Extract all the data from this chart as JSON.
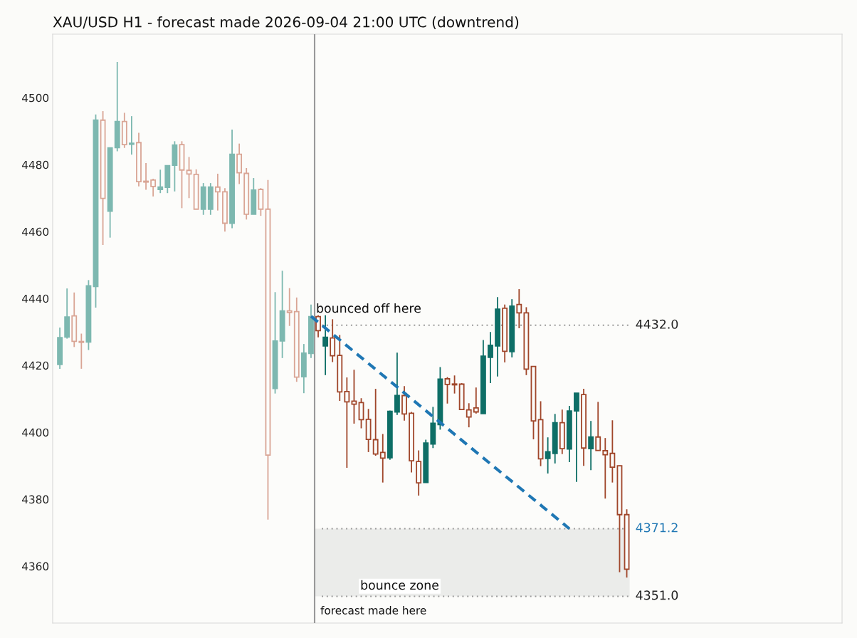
{
  "chart_data": {
    "type": "candlestick",
    "title": "XAU/USD H1 - forecast made 2026-09-04 21:00 UTC (downtrend)",
    "categories": [
      null,
      null,
      null,
      null,
      null,
      null,
      null,
      null,
      null,
      null,
      null,
      null,
      null,
      null,
      null,
      null,
      null,
      null,
      null,
      null,
      null,
      null,
      null,
      null,
      null,
      null,
      null,
      null,
      null,
      null,
      null,
      null,
      null,
      null,
      null,
      null,
      null,
      null,
      null,
      null,
      null,
      null,
      null,
      null,
      null,
      null,
      null,
      null,
      null,
      null,
      null,
      null,
      null,
      null,
      null,
      null,
      null,
      null,
      null,
      null,
      null,
      null,
      null,
      null,
      null,
      null,
      null,
      null,
      null,
      null,
      null,
      null,
      null,
      null,
      null,
      null,
      null,
      null,
      null,
      null
    ],
    "ohlc": [
      [
        4420.3,
        4431.3,
        4419.0,
        4428.3
      ],
      [
        4428.5,
        4443.0,
        4428.0,
        4434.5
      ],
      [
        4434.8,
        4441.8,
        4425.5,
        4427.2
      ],
      [
        4427.1,
        4429.5,
        4419.0,
        4426.9
      ],
      [
        4427.0,
        4445.5,
        4424.6,
        4443.8
      ],
      [
        4443.6,
        4495.0,
        4437.3,
        4493.3
      ],
      [
        4493.3,
        4496.0,
        4456.0,
        4469.9
      ],
      [
        4466.1,
        4485.0,
        4458.2,
        4485.0
      ],
      [
        4485.1,
        4510.7,
        4484.0,
        4492.9
      ],
      [
        4492.9,
        4495.5,
        4485.0,
        4486.0
      ],
      [
        4486.1,
        4494.5,
        4483.0,
        4486.4
      ],
      [
        4486.6,
        4489.5,
        4473.5,
        4474.9
      ],
      [
        4475.0,
        4480.5,
        4472.5,
        4474.8
      ],
      [
        4475.4,
        4475.8,
        4470.5,
        4473.5
      ],
      [
        4472.6,
        4478.5,
        4471.5,
        4473.3
      ],
      [
        4473.2,
        4479.7,
        4471.5,
        4479.7
      ],
      [
        4479.8,
        4487.0,
        4472.0,
        4485.9
      ],
      [
        4486.0,
        4487.0,
        4467.0,
        4478.4
      ],
      [
        4478.3,
        4482.3,
        4470.0,
        4477.2
      ],
      [
        4477.1,
        4478.6,
        4466.7,
        4466.7
      ],
      [
        4466.7,
        4474.5,
        4465.0,
        4473.3
      ],
      [
        4466.7,
        4474.5,
        4465.0,
        4473.3
      ],
      [
        4473.3,
        4477.3,
        4466.3,
        4471.9
      ],
      [
        4471.9,
        4473.0,
        4460.0,
        4462.5
      ],
      [
        4462.5,
        4490.5,
        4461.0,
        4483.1
      ],
      [
        4483.1,
        4486.3,
        4474.2,
        4477.6
      ],
      [
        4477.4,
        4479.0,
        4463.6,
        4465.2
      ],
      [
        4465.2,
        4476.0,
        4465.2,
        4472.4
      ],
      [
        4472.6,
        4473.0,
        4464.7,
        4466.7
      ],
      [
        4466.7,
        4475.4,
        4373.9,
        4393.2
      ],
      [
        4413.1,
        4441.9,
        4411.6,
        4427.3
      ],
      [
        4427.3,
        4448.3,
        4422.2,
        4436.3
      ],
      [
        4436.3,
        4443.1,
        4431.8,
        4435.8
      ],
      [
        4436.1,
        4440.3,
        4415.1,
        4416.5
      ],
      [
        4416.6,
        4426.4,
        4411.7,
        4423.7
      ],
      [
        4423.6,
        4438.2,
        4422.2,
        4434.6
      ],
      [
        4434.6,
        4435.0,
        4428.4,
        4430.4
      ],
      [
        4425.8,
        4435.0,
        4417.1,
        4428.4
      ],
      [
        4428.2,
        4433.8,
        4421.0,
        4422.9
      ],
      [
        4423.0,
        4429.1,
        4409.4,
        4412.1
      ],
      [
        4412.2,
        4416.4,
        4389.4,
        4409.1
      ],
      [
        4409.3,
        4418.7,
        4402.6,
        4408.4
      ],
      [
        4408.9,
        4410.2,
        4401.2,
        4403.8
      ],
      [
        4403.9,
        4407.0,
        4394.1,
        4397.9
      ],
      [
        4397.8,
        4413.0,
        4393.0,
        4393.5
      ],
      [
        4394.0,
        4399.5,
        4385.0,
        4392.3
      ],
      [
        4392.4,
        4406.5,
        4391.8,
        4406.3
      ],
      [
        4406.1,
        4423.8,
        4405.2,
        4411.0
      ],
      [
        4411.0,
        4413.8,
        4403.5,
        4405.5
      ],
      [
        4405.7,
        4406.1,
        4388.0,
        4391.5
      ],
      [
        4391.3,
        4394.6,
        4381.1,
        4384.9
      ],
      [
        4385.0,
        4397.8,
        4385.0,
        4396.8
      ],
      [
        4396.5,
        4407.6,
        4395.3,
        4402.7
      ],
      [
        4402.3,
        4419.5,
        4400.8,
        4415.9
      ],
      [
        4416.0,
        4416.5,
        4408.6,
        4414.3
      ],
      [
        4414.3,
        4417.0,
        4411.6,
        4414.2
      ],
      [
        4414.4,
        4414.7,
        4406.8,
        4406.8
      ],
      [
        4406.7,
        4408.7,
        4401.5,
        4404.6
      ],
      [
        4407.3,
        4413.4,
        4405.6,
        4406.1
      ],
      [
        4405.6,
        4427.6,
        4405.6,
        4422.8
      ],
      [
        4422.4,
        4430.0,
        4414.7,
        4426.0
      ],
      [
        4425.8,
        4440.4,
        4416.7,
        4436.8
      ],
      [
        4437.1,
        4438.2,
        4420.9,
        4424.2
      ],
      [
        4424.1,
        4439.8,
        4422.4,
        4437.7
      ],
      [
        4438.2,
        4442.8,
        4431.1,
        4435.7
      ],
      [
        4435.7,
        4437.4,
        4417.1,
        4418.9
      ],
      [
        4419.7,
        4419.7,
        4397.9,
        4403.4
      ],
      [
        4403.8,
        4409.3,
        4389.9,
        4392.1
      ],
      [
        4392.2,
        4398.5,
        4387.7,
        4394.2
      ],
      [
        4393.7,
        4405.5,
        4390.7,
        4402.9
      ],
      [
        4402.9,
        4406.8,
        4393.5,
        4395.1
      ],
      [
        4395.0,
        4407.9,
        4391.1,
        4406.4
      ],
      [
        4406.4,
        4411.7,
        4385.2,
        4411.7
      ],
      [
        4411.3,
        4413.0,
        4390.0,
        4395.3
      ],
      [
        4395.1,
        4403.4,
        4388.7,
        4398.6
      ],
      [
        4398.6,
        4409.1,
        4394.6,
        4394.6
      ],
      [
        4394.5,
        4398.3,
        4380.2,
        4393.3
      ],
      [
        4393.7,
        4403.6,
        4385.0,
        4389.6
      ],
      [
        4390.0,
        4390.1,
        4358.2,
        4375.4
      ],
      [
        4375.4,
        4377.0,
        4356.6,
        4359.1
      ]
    ],
    "colors": [
      "#7db8b0",
      "#7db8b0",
      "#d9a595",
      "#d9a595",
      "#7db8b0",
      "#7db8b0",
      "#d9a595",
      "#7db8b0",
      "#7db8b0",
      "#d9a595",
      "#7db8b0",
      "#d9a595",
      "#d9a595",
      "#d9a595",
      "#7db8b0",
      "#7db8b0",
      "#7db8b0",
      "#d9a595",
      "#d9a595",
      "#d9a595",
      "#7db8b0",
      "#7db8b0",
      "#d9a595",
      "#d9a595",
      "#7db8b0",
      "#d9a595",
      "#d9a595",
      "#7db8b0",
      "#d9a595",
      "#d9a595",
      "#7db8b0",
      "#7db8b0",
      "#d9a595",
      "#d9a595",
      "#7db8b0",
      "#7db8b0",
      "#a0462a",
      "#0e6e66",
      "#a0462a",
      "#a0462a",
      "#a0462a",
      "#a0462a",
      "#a0462a",
      "#a0462a",
      "#a0462a",
      "#a0462a",
      "#0e6e66",
      "#0e6e66",
      "#a0462a",
      "#a0462a",
      "#a0462a",
      "#0e6e66",
      "#0e6e66",
      "#0e6e66",
      "#a0462a",
      "#a0462a",
      "#a0462a",
      "#a0462a",
      "#a0462a",
      "#0e6e66",
      "#0e6e66",
      "#0e6e66",
      "#a0462a",
      "#0e6e66",
      "#a0462a",
      "#a0462a",
      "#a0462a",
      "#a0462a",
      "#0e6e66",
      "#0e6e66",
      "#a0462a",
      "#0e6e66",
      "#0e6e66",
      "#a0462a",
      "#0e6e66",
      "#a0462a",
      "#a0462a",
      "#a0462a",
      "#a0462a",
      "#a0462a"
    ],
    "series": [
      {
        "type": "line",
        "values": [
          null,
          null,
          null,
          null,
          null,
          null,
          null,
          null,
          null,
          null,
          null,
          null,
          null,
          null,
          null,
          null,
          null,
          null,
          null,
          null,
          null,
          null,
          null,
          null,
          null,
          null,
          null,
          null,
          null,
          null,
          null,
          null,
          null,
          null,
          null,
          4434.7,
          null,
          null,
          null,
          null,
          null,
          null,
          null,
          null,
          null,
          null,
          null,
          null,
          null,
          null,
          null,
          null,
          null,
          null,
          null,
          null,
          null,
          null,
          null,
          null,
          null,
          null,
          null,
          null,
          null,
          null,
          null,
          null,
          null,
          null,
          null,
          4371.2,
          null,
          null,
          null,
          null,
          null,
          null,
          null,
          null
        ],
        "color": "#1f77b4",
        "line_style": "dashed"
      }
    ],
    "ylim": [
      4343,
      4519
    ],
    "yticks": [
      4360,
      4380,
      4400,
      4420,
      4440,
      4460,
      4480,
      4500
    ],
    "ref_lines": [
      {
        "axis": "y",
        "value": 4432.0,
        "label": "4432.0",
        "color": "#999999",
        "line_style": "dotted"
      },
      {
        "axis": "y",
        "value": 4371.2,
        "label": "4371.2",
        "color": "#999999",
        "line_style": "dotted"
      },
      {
        "axis": "y",
        "value": 4351.0,
        "label": "4351.0",
        "color": "#999999",
        "line_style": "dotted"
      }
    ],
    "bands": [
      {
        "axis": "y",
        "from": 4351.0,
        "to": 4371.2,
        "label": "bounce zone",
        "color": "#ebecea"
      }
    ],
    "annotations": [
      "bounced off here",
      "forecast made here"
    ],
    "grid": false,
    "legend": false
  }
}
